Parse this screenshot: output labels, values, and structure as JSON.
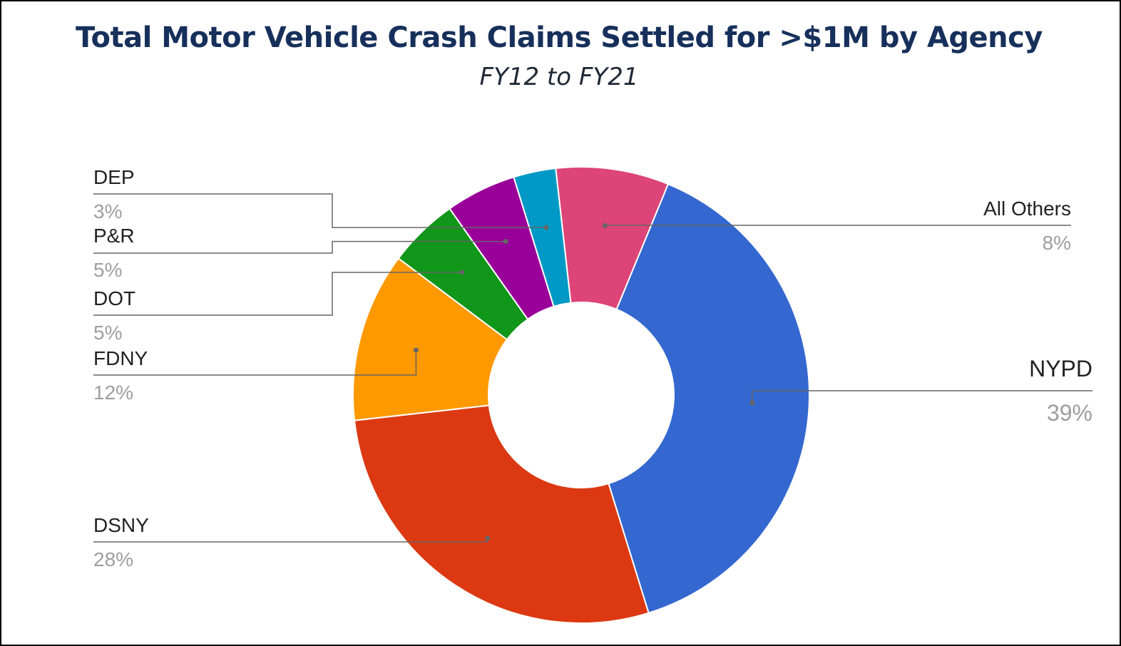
{
  "chart_data": {
    "type": "pie",
    "donut": true,
    "title": "Total Motor Vehicle Crash Claims Settled for >$1M by Agency",
    "subtitle": "FY12 to FY21",
    "slices": [
      {
        "label": "NYPD",
        "value": 39,
        "display": "39%",
        "color": "#3467cf"
      },
      {
        "label": "DSNY",
        "value": 28,
        "display": "28%",
        "color": "#dc3912"
      },
      {
        "label": "FDNY",
        "value": 12,
        "display": "12%",
        "color": "#ff9900"
      },
      {
        "label": "DOT",
        "value": 5,
        "display": "5%",
        "color": "#109618"
      },
      {
        "label": "P&R",
        "value": 5,
        "display": "5%",
        "color": "#990099"
      },
      {
        "label": "DEP",
        "value": 3,
        "display": "3%",
        "color": "#0099c6"
      },
      {
        "label": "All Others",
        "value": 8,
        "display": "8%",
        "color": "#dd4477"
      }
    ],
    "legend": "none"
  }
}
